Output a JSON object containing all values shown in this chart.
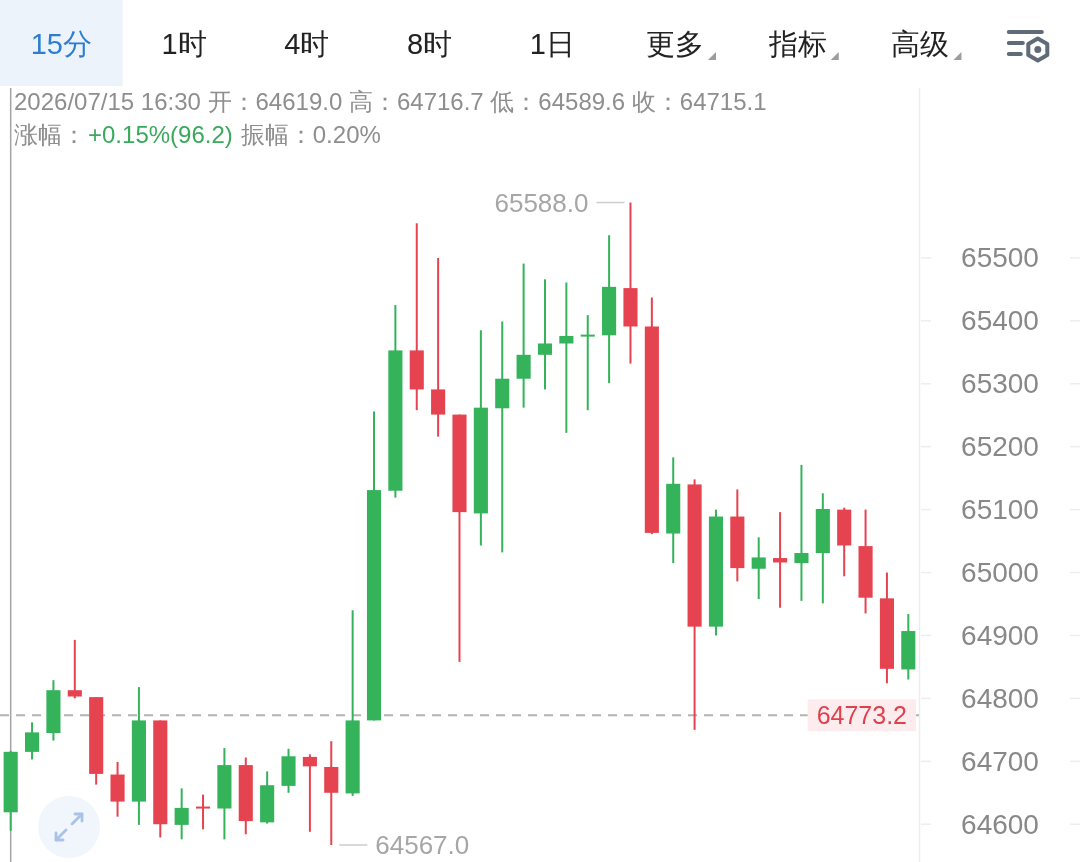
{
  "chart_data": {
    "type": "candlestick",
    "categories": [
      null,
      null,
      null,
      null,
      null,
      null,
      null,
      null,
      null,
      null,
      null,
      null,
      null,
      null,
      null,
      null,
      null,
      null,
      null,
      null,
      null,
      null,
      null,
      null,
      null,
      null,
      null,
      null,
      null,
      null,
      null,
      null,
      null,
      null,
      null,
      null,
      null,
      null,
      null,
      null,
      null,
      null,
      null
    ],
    "ohlc": [
      [
        64619.0,
        64716.7,
        64589.6,
        64715.1
      ],
      [
        64715,
        64762,
        64703,
        64746
      ],
      [
        64745,
        64829,
        64733,
        64813
      ],
      [
        64813,
        64893,
        64800,
        64803
      ],
      [
        64802,
        64802,
        64663,
        64680
      ],
      [
        64679,
        64699,
        64612,
        64636
      ],
      [
        64636,
        64818,
        64599,
        64765
      ],
      [
        64765,
        64765,
        64579,
        64600
      ],
      [
        64599,
        64657,
        64576,
        64626
      ],
      [
        64627,
        64647,
        64592,
        64626
      ],
      [
        64625,
        64721,
        64576,
        64694
      ],
      [
        64694,
        64706,
        64584,
        64605
      ],
      [
        64603,
        64684,
        64601,
        64662
      ],
      [
        64661,
        64720,
        64650,
        64708
      ],
      [
        64707,
        64711,
        64588,
        64692
      ],
      [
        64691,
        64732,
        64567.0,
        64650
      ],
      [
        64649,
        64940,
        64645,
        64765
      ],
      [
        64765,
        65256,
        64765,
        65131
      ],
      [
        65130,
        65425,
        65119,
        65353
      ],
      [
        65353,
        65555,
        65258,
        65291
      ],
      [
        65291,
        65500,
        65216,
        65251
      ],
      [
        65251,
        65251,
        64858,
        65096
      ],
      [
        65094,
        65385,
        65043,
        65262
      ],
      [
        65261,
        65399,
        65032,
        65308
      ],
      [
        65308,
        65491,
        65262,
        65346
      ],
      [
        65346,
        65466,
        65291,
        65364
      ],
      [
        65364,
        65461,
        65222,
        65376
      ],
      [
        65376,
        65409,
        65258,
        65377
      ],
      [
        65377,
        65536,
        65301,
        65454
      ],
      [
        65452,
        65588.0,
        65332,
        65391
      ],
      [
        65391,
        65437,
        65061,
        65063
      ],
      [
        65062,
        65183,
        65015,
        65141
      ],
      [
        65140,
        65148,
        64750,
        64914
      ],
      [
        64914,
        65100,
        64900,
        65089
      ],
      [
        65089,
        65132,
        64986,
        65007
      ],
      [
        65006,
        65056,
        64958,
        65024
      ],
      [
        65023,
        65096,
        64944,
        65016
      ],
      [
        65015,
        65171,
        64955,
        65031
      ],
      [
        65031,
        65126,
        64951,
        65101
      ],
      [
        65100,
        65103,
        64994,
        65043
      ],
      [
        65042,
        65100,
        64935,
        64960
      ],
      [
        64959,
        65000,
        64824,
        64847
      ],
      [
        64846,
        64934,
        64830,
        64907
      ]
    ],
    "colors": [
      "#34b35a",
      "#34b35a",
      "#34b35a",
      "#e5434f",
      "#e5434f",
      "#e5434f",
      "#34b35a",
      "#e5434f",
      "#34b35a",
      "#e5434f",
      "#34b35a",
      "#e5434f",
      "#34b35a",
      "#34b35a",
      "#e5434f",
      "#e5434f",
      "#34b35a",
      "#34b35a",
      "#34b35a",
      "#e5434f",
      "#e5434f",
      "#e5434f",
      "#34b35a",
      "#34b35a",
      "#34b35a",
      "#34b35a",
      "#34b35a",
      "#34b35a",
      "#34b35a",
      "#e5434f",
      "#e5434f",
      "#34b35a",
      "#e5434f",
      "#34b35a",
      "#e5434f",
      "#34b35a",
      "#e5434f",
      "#34b35a",
      "#34b35a",
      "#e5434f",
      "#e5434f",
      "#e5434f",
      "#34b35a"
    ],
    "ylim": [
      64540,
      65770
    ],
    "yticks": [
      64600,
      64700,
      64800,
      64900,
      65000,
      65100,
      65200,
      65300,
      65400,
      65500
    ],
    "ref_lines": [
      {
        "axis": "y",
        "value": 64773.2,
        "label": "64773.2",
        "color": "#b3b3b3",
        "line_style": "dashed"
      }
    ],
    "annotations": [
      "15分",
      "1时",
      "4时",
      "8时",
      "1日",
      "更多",
      "指标",
      "高级",
      "2026/07/15 16:30 开：64619.0 高：64716.7 低：64589.6 收：64715.1",
      "涨幅：",
      "+0.15%(96.2)",
      "振幅：0.20%",
      "65588.0",
      "64567.0"
    ]
  }
}
